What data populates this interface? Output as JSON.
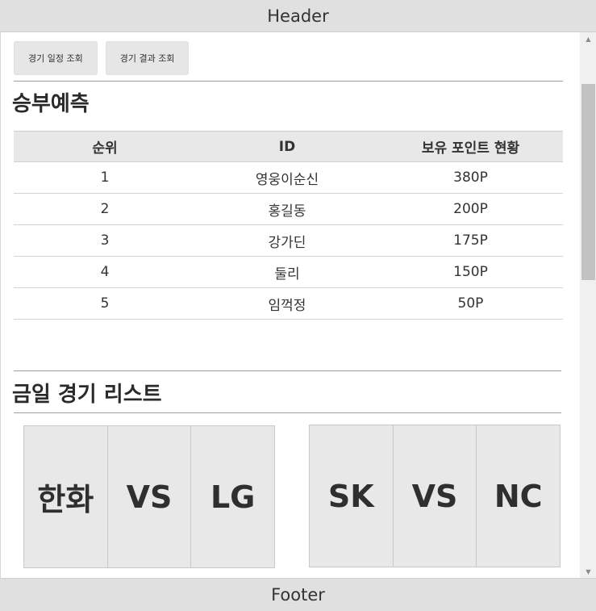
{
  "header": {
    "title": "Header"
  },
  "footer": {
    "title": "Footer"
  },
  "nav": {
    "schedule_label": "경기 일정 조회",
    "results_label": "경기 결과 조회"
  },
  "prediction": {
    "title": "승부예측",
    "columns": [
      "순위",
      "ID",
      "보유 포인트 현황"
    ],
    "rows": [
      {
        "rank": "1",
        "id": "영웅이순신",
        "points": "380P"
      },
      {
        "rank": "2",
        "id": "홍길동",
        "points": "200P"
      },
      {
        "rank": "3",
        "id": "강가딘",
        "points": "175P"
      },
      {
        "rank": "4",
        "id": "둘리",
        "points": "150P"
      },
      {
        "rank": "5",
        "id": "임꺽정",
        "points": "50P"
      }
    ]
  },
  "games": {
    "title": "금일 경기 리스트",
    "matches": [
      {
        "home": "한화",
        "vs": "VS",
        "away": "LG"
      },
      {
        "home": "SK",
        "vs": "VS",
        "away": "NC"
      }
    ]
  }
}
